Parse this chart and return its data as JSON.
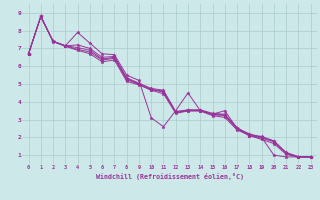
{
  "xlabel": "Windchill (Refroidissement éolien,°C)",
  "bg_color": "#cce8e8",
  "grid_color": "#aacccc",
  "line_color": "#993399",
  "xlim": [
    -0.5,
    23.5
  ],
  "ylim": [
    0.5,
    9.5
  ],
  "xticks": [
    0,
    1,
    2,
    3,
    4,
    5,
    6,
    7,
    8,
    9,
    10,
    11,
    12,
    13,
    14,
    15,
    16,
    17,
    18,
    19,
    20,
    21,
    22,
    23
  ],
  "yticks": [
    1,
    2,
    3,
    4,
    5,
    6,
    7,
    8,
    9
  ],
  "series": [
    [
      6.7,
      8.8,
      7.4,
      7.15,
      7.9,
      7.3,
      6.7,
      6.65,
      5.5,
      5.2,
      3.1,
      2.6,
      3.5,
      4.5,
      3.5,
      3.3,
      3.5,
      2.5,
      2.1,
      2.0,
      1.0,
      0.9,
      0.9,
      0.9
    ],
    [
      6.7,
      8.8,
      7.4,
      7.15,
      7.2,
      7.0,
      6.5,
      6.55,
      5.35,
      5.05,
      4.75,
      4.65,
      3.45,
      3.55,
      3.55,
      3.35,
      3.3,
      2.55,
      2.15,
      2.05,
      1.8,
      1.15,
      0.92,
      0.92
    ],
    [
      6.7,
      8.8,
      7.4,
      7.15,
      7.05,
      6.9,
      6.4,
      6.5,
      5.3,
      5.0,
      4.7,
      4.6,
      3.4,
      3.5,
      3.5,
      3.3,
      3.25,
      2.5,
      2.2,
      2.0,
      1.8,
      1.1,
      0.9,
      0.9
    ],
    [
      6.7,
      8.8,
      7.4,
      7.15,
      6.95,
      6.8,
      6.35,
      6.45,
      5.25,
      4.98,
      4.68,
      4.55,
      3.42,
      3.52,
      3.52,
      3.28,
      3.22,
      2.48,
      2.12,
      1.95,
      1.75,
      1.1,
      0.9,
      0.9
    ],
    [
      6.7,
      8.8,
      7.38,
      7.12,
      6.9,
      6.7,
      6.25,
      6.35,
      5.15,
      4.95,
      4.65,
      4.45,
      3.35,
      3.48,
      3.48,
      3.22,
      3.12,
      2.42,
      2.1,
      1.88,
      1.65,
      1.05,
      0.88,
      0.88
    ]
  ]
}
